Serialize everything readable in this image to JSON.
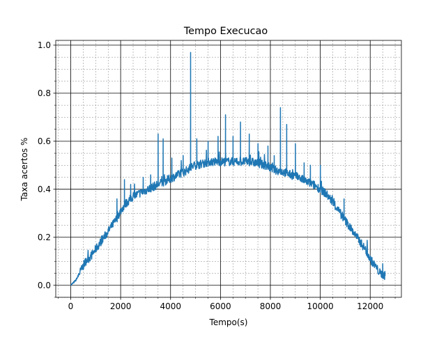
{
  "colors": {
    "series": "#1f77b4",
    "major_grid": "#000000",
    "minor_grid": "#808080",
    "axes": "#000000",
    "background": "#ffffff"
  },
  "chart_data": {
    "type": "line",
    "title": "Tempo Execucao",
    "xlabel": "Tempo(s)",
    "ylabel": "Taxa acertos %",
    "xlim": [
      -600,
      13250
    ],
    "ylim": [
      -0.05,
      1.02
    ],
    "xticks": [
      0,
      2000,
      4000,
      6000,
      8000,
      10000,
      12000
    ],
    "xtick_labels": [
      "0",
      "2000",
      "4000",
      "6000",
      "8000",
      "10000",
      "12000"
    ],
    "yticks": [
      0.0,
      0.2,
      0.4,
      0.6,
      0.8,
      1.0
    ],
    "ytick_labels": [
      "0.0",
      "0.2",
      "0.4",
      "0.6",
      "0.8",
      "1.0"
    ],
    "grid": "major and minor",
    "legend": "none",
    "series": [
      {
        "x": [
          0,
          200,
          400,
          600,
          800,
          1000,
          1200,
          1400,
          1600,
          1800,
          2000,
          2200,
          2400,
          2600,
          2800,
          3000,
          3200,
          3400,
          3600,
          3800,
          4000,
          4200,
          4400,
          4600,
          4800,
          5000,
          5200,
          5400,
          5600,
          5800,
          6000,
          6200,
          6400,
          6600,
          6800,
          7000,
          7200,
          7400,
          7600,
          7800,
          8000,
          8200,
          8400,
          8600,
          8800,
          9000,
          9200,
          9400,
          9600,
          9800,
          10000,
          10200,
          10400,
          10600,
          10800,
          11000,
          11200,
          11400,
          11600,
          11800,
          12000,
          12200,
          12400,
          12600
        ],
        "y": [
          0.0,
          0.02,
          0.06,
          0.1,
          0.12,
          0.15,
          0.18,
          0.21,
          0.24,
          0.27,
          0.31,
          0.34,
          0.36,
          0.375,
          0.385,
          0.395,
          0.405,
          0.415,
          0.425,
          0.435,
          0.445,
          0.455,
          0.465,
          0.475,
          0.49,
          0.5,
          0.505,
          0.51,
          0.515,
          0.515,
          0.515,
          0.515,
          0.515,
          0.515,
          0.515,
          0.515,
          0.515,
          0.51,
          0.505,
          0.5,
          0.49,
          0.48,
          0.475,
          0.47,
          0.46,
          0.455,
          0.445,
          0.435,
          0.425,
          0.415,
          0.4,
          0.385,
          0.36,
          0.33,
          0.3,
          0.27,
          0.24,
          0.21,
          0.18,
          0.15,
          0.11,
          0.08,
          0.05,
          0.04
        ]
      }
    ],
    "spikes": [
      {
        "x": 1850,
        "y": 0.36
      },
      {
        "x": 2150,
        "y": 0.44
      },
      {
        "x": 2400,
        "y": 0.42
      },
      {
        "x": 2900,
        "y": 0.45
      },
      {
        "x": 3200,
        "y": 0.46
      },
      {
        "x": 3500,
        "y": 0.63
      },
      {
        "x": 3700,
        "y": 0.61
      },
      {
        "x": 4050,
        "y": 0.53
      },
      {
        "x": 4500,
        "y": 0.54
      },
      {
        "x": 4800,
        "y": 0.97
      },
      {
        "x": 5050,
        "y": 0.61
      },
      {
        "x": 5500,
        "y": 0.6
      },
      {
        "x": 5900,
        "y": 0.62
      },
      {
        "x": 6200,
        "y": 0.71
      },
      {
        "x": 6500,
        "y": 0.62
      },
      {
        "x": 6800,
        "y": 0.68
      },
      {
        "x": 7150,
        "y": 0.63
      },
      {
        "x": 7500,
        "y": 0.59
      },
      {
        "x": 7900,
        "y": 0.58
      },
      {
        "x": 8150,
        "y": 0.54
      },
      {
        "x": 8400,
        "y": 0.74
      },
      {
        "x": 8650,
        "y": 0.67
      },
      {
        "x": 9000,
        "y": 0.59
      },
      {
        "x": 9350,
        "y": 0.51
      },
      {
        "x": 9600,
        "y": 0.5
      },
      {
        "x": 10000,
        "y": 0.5
      },
      {
        "x": 10950,
        "y": 0.36
      },
      {
        "x": 12500,
        "y": 0.09
      }
    ]
  }
}
